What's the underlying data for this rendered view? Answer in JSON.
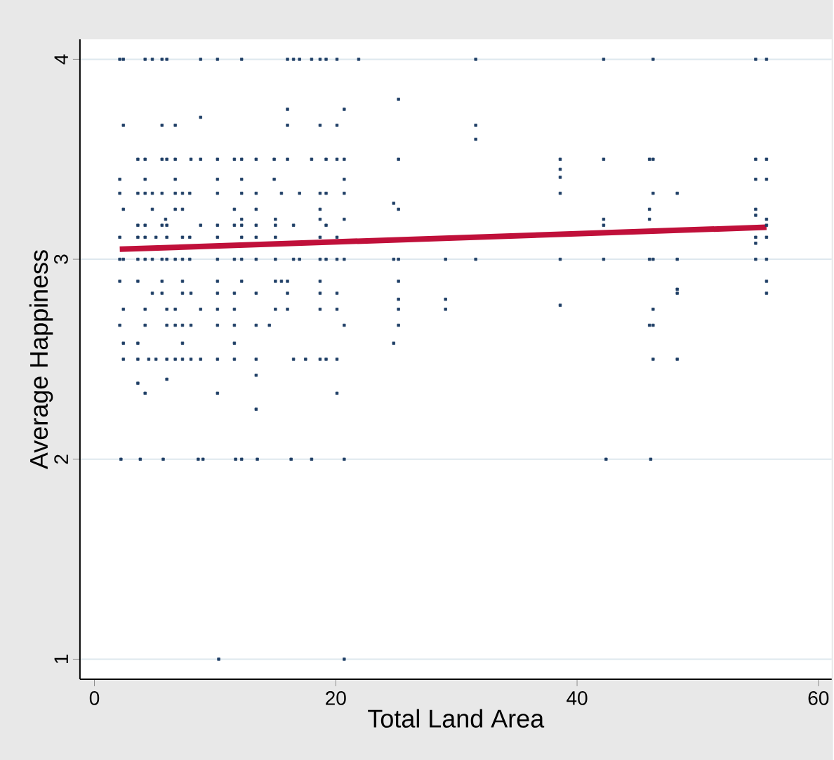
{
  "chart_data": {
    "type": "scatter",
    "xlabel": "Total Land Area",
    "ylabel": "Average Happiness",
    "xlim": [
      -1.2,
      61.1
    ],
    "ylim": [
      0.9,
      4.1
    ],
    "xticks": [
      0,
      20,
      40,
      60
    ],
    "yticks": [
      1,
      2,
      3,
      4
    ],
    "grid": "y",
    "series": [
      {
        "color": "#1f3f66",
        "marker": "square",
        "x": [
          2.1,
          2.4,
          4.2,
          4.8,
          5.6,
          6.0,
          8.8,
          10.2,
          12.2,
          16.0,
          16.5,
          17.0,
          18.0,
          18.7,
          19.2,
          20.1,
          21.9,
          31.6,
          42.2,
          46.3,
          54.8,
          55.7,
          25.2,
          16.0,
          20.7,
          8.8,
          2.4,
          5.6,
          6.7,
          16.0,
          18.7,
          20.1,
          31.6,
          31.6,
          3.6,
          4.2,
          5.6,
          6.0,
          6.7,
          8.0,
          8.8,
          10.2,
          11.6,
          12.2,
          13.4,
          14.9,
          16.0,
          18.0,
          19.2,
          20.1,
          20.7,
          25.2,
          38.6,
          42.2,
          46.0,
          46.3,
          54.8,
          55.7,
          38.6,
          38.6,
          2.1,
          4.2,
          6.7,
          10.2,
          12.2,
          14.9,
          20.7,
          54.8,
          55.7,
          2.1,
          3.6,
          4.2,
          4.8,
          5.6,
          6.7,
          7.3,
          7.9,
          10.2,
          12.2,
          13.4,
          15.5,
          17.0,
          18.7,
          19.2,
          20.7,
          38.6,
          46.3,
          48.3,
          24.8,
          2.4,
          4.8,
          6.7,
          7.3,
          11.6,
          13.4,
          18.7,
          25.2,
          46.0,
          54.8,
          54.8,
          5.9,
          12.2,
          15.0,
          18.7,
          20.7,
          42.2,
          46.0,
          55.7,
          3.6,
          4.2,
          5.6,
          6.0,
          8.8,
          10.2,
          11.6,
          12.2,
          13.4,
          15.0,
          16.5,
          19.2,
          42.2,
          55.7,
          2.1,
          3.6,
          4.2,
          5.1,
          6.0,
          7.3,
          7.9,
          10.2,
          12.2,
          13.4,
          15.0,
          18.7,
          20.1,
          54.8,
          55.7,
          54.8,
          2.1,
          2.4,
          3.6,
          4.2,
          4.8,
          5.6,
          6.0,
          6.7,
          7.3,
          7.9,
          10.2,
          11.6,
          12.2,
          13.4,
          15.0,
          16.5,
          17.0,
          18.7,
          19.2,
          20.1,
          20.7,
          24.8,
          25.2,
          29.1,
          31.6,
          38.6,
          42.2,
          46.0,
          46.3,
          48.3,
          54.8,
          55.7,
          2.1,
          3.6,
          5.6,
          7.3,
          10.2,
          12.2,
          15.0,
          15.5,
          16.0,
          18.7,
          25.2,
          55.7,
          48.3,
          4.8,
          5.6,
          7.3,
          8.0,
          10.2,
          11.6,
          13.4,
          16.0,
          18.7,
          20.1,
          48.3,
          55.7,
          25.2,
          29.1,
          38.6,
          2.4,
          4.2,
          6.0,
          6.7,
          8.8,
          10.2,
          11.6,
          15.0,
          16.0,
          18.7,
          20.1,
          25.2,
          29.1,
          46.3,
          2.1,
          4.2,
          6.0,
          6.7,
          7.3,
          8.0,
          10.2,
          11.6,
          13.4,
          14.5,
          20.7,
          25.2,
          46.0,
          46.3,
          2.4,
          3.6,
          7.3,
          11.6,
          24.8,
          2.4,
          3.6,
          4.5,
          5.1,
          6.0,
          6.7,
          7.3,
          8.0,
          8.8,
          10.2,
          11.6,
          13.4,
          16.5,
          17.5,
          18.7,
          19.2,
          20.1,
          46.3,
          48.3,
          13.4,
          3.6,
          6.0,
          4.2,
          10.2,
          20.1,
          13.4,
          2.2,
          3.8,
          5.7,
          8.6,
          9.0,
          11.7,
          12.2,
          13.5,
          16.3,
          18.0,
          20.7,
          42.4,
          46.1,
          10.3,
          20.7
        ],
        "values": [
          4,
          4,
          4,
          4,
          4,
          4,
          4,
          4,
          4,
          4,
          4,
          4,
          4,
          4,
          4,
          4,
          4,
          4,
          4,
          4,
          4,
          4,
          3.8,
          3.75,
          3.75,
          3.71,
          3.67,
          3.67,
          3.67,
          3.67,
          3.67,
          3.67,
          3.67,
          3.6,
          3.5,
          3.5,
          3.5,
          3.5,
          3.5,
          3.5,
          3.5,
          3.5,
          3.5,
          3.5,
          3.5,
          3.5,
          3.5,
          3.5,
          3.5,
          3.5,
          3.5,
          3.5,
          3.5,
          3.5,
          3.5,
          3.5,
          3.5,
          3.5,
          3.45,
          3.41,
          3.4,
          3.4,
          3.4,
          3.4,
          3.4,
          3.4,
          3.4,
          3.4,
          3.4,
          3.33,
          3.33,
          3.33,
          3.33,
          3.33,
          3.33,
          3.33,
          3.33,
          3.33,
          3.33,
          3.33,
          3.33,
          3.33,
          3.33,
          3.33,
          3.33,
          3.33,
          3.33,
          3.33,
          3.28,
          3.25,
          3.25,
          3.25,
          3.25,
          3.25,
          3.25,
          3.25,
          3.25,
          3.25,
          3.25,
          3.22,
          3.2,
          3.2,
          3.2,
          3.2,
          3.2,
          3.2,
          3.2,
          3.2,
          3.17,
          3.17,
          3.17,
          3.17,
          3.17,
          3.17,
          3.17,
          3.17,
          3.17,
          3.17,
          3.17,
          3.17,
          3.17,
          3.17,
          3.11,
          3.11,
          3.11,
          3.11,
          3.11,
          3.11,
          3.11,
          3.11,
          3.11,
          3.11,
          3.11,
          3.11,
          3.11,
          3.11,
          3.11,
          3.08,
          3,
          3,
          3,
          3,
          3,
          3,
          3,
          3,
          3,
          3,
          3,
          3,
          3,
          3,
          3,
          3,
          3,
          3,
          3,
          3,
          3,
          3,
          3,
          3,
          3,
          3,
          3,
          3,
          3,
          3,
          3,
          3,
          2.89,
          2.89,
          2.89,
          2.89,
          2.89,
          2.89,
          2.89,
          2.89,
          2.89,
          2.89,
          2.89,
          2.89,
          2.85,
          2.83,
          2.83,
          2.83,
          2.83,
          2.83,
          2.83,
          2.83,
          2.83,
          2.83,
          2.83,
          2.83,
          2.83,
          2.8,
          2.8,
          2.77,
          2.75,
          2.75,
          2.75,
          2.75,
          2.75,
          2.75,
          2.75,
          2.75,
          2.75,
          2.75,
          2.75,
          2.75,
          2.75,
          2.75,
          2.67,
          2.67,
          2.67,
          2.67,
          2.67,
          2.67,
          2.67,
          2.67,
          2.67,
          2.67,
          2.67,
          2.67,
          2.67,
          2.67,
          2.58,
          2.58,
          2.58,
          2.58,
          2.58,
          2.5,
          2.5,
          2.5,
          2.5,
          2.5,
          2.5,
          2.5,
          2.5,
          2.5,
          2.5,
          2.5,
          2.5,
          2.5,
          2.5,
          2.5,
          2.5,
          2.5,
          2.5,
          2.5,
          2.42,
          2.38,
          2.4,
          2.33,
          2.33,
          2.33,
          2.25,
          2,
          2,
          2,
          2,
          2,
          2,
          2,
          2,
          2,
          2,
          2,
          2,
          2,
          1,
          1
        ]
      },
      {
        "type": "line",
        "color": "#c0103a",
        "marker": "none",
        "line_style": "solid",
        "x": [
          2.1,
          55.7
        ],
        "values": [
          3.05,
          3.16
        ]
      }
    ]
  }
}
